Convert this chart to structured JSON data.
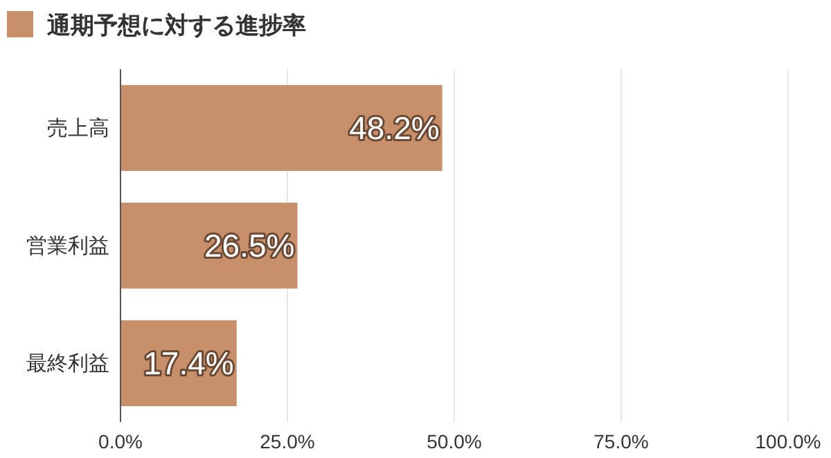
{
  "chart_data": {
    "type": "bar",
    "orientation": "horizontal",
    "categories": [
      "売上高",
      "営業利益",
      "最終利益"
    ],
    "series": [
      {
        "name": "通期予想に対する進捗率",
        "color": "#c8906a",
        "values": [
          48.2,
          26.5,
          17.4
        ],
        "value_labels": [
          "48.2%",
          "26.5%",
          "17.4%"
        ]
      }
    ],
    "xlim": [
      0,
      100
    ],
    "xticks": [
      {
        "value": 0,
        "label": "0.0%"
      },
      {
        "value": 25,
        "label": "25.0%"
      },
      {
        "value": 50,
        "label": "50.0%"
      },
      {
        "value": 75,
        "label": "75.0%"
      },
      {
        "value": 100,
        "label": "100.0%"
      }
    ],
    "grid": "x",
    "legend": "top left"
  }
}
